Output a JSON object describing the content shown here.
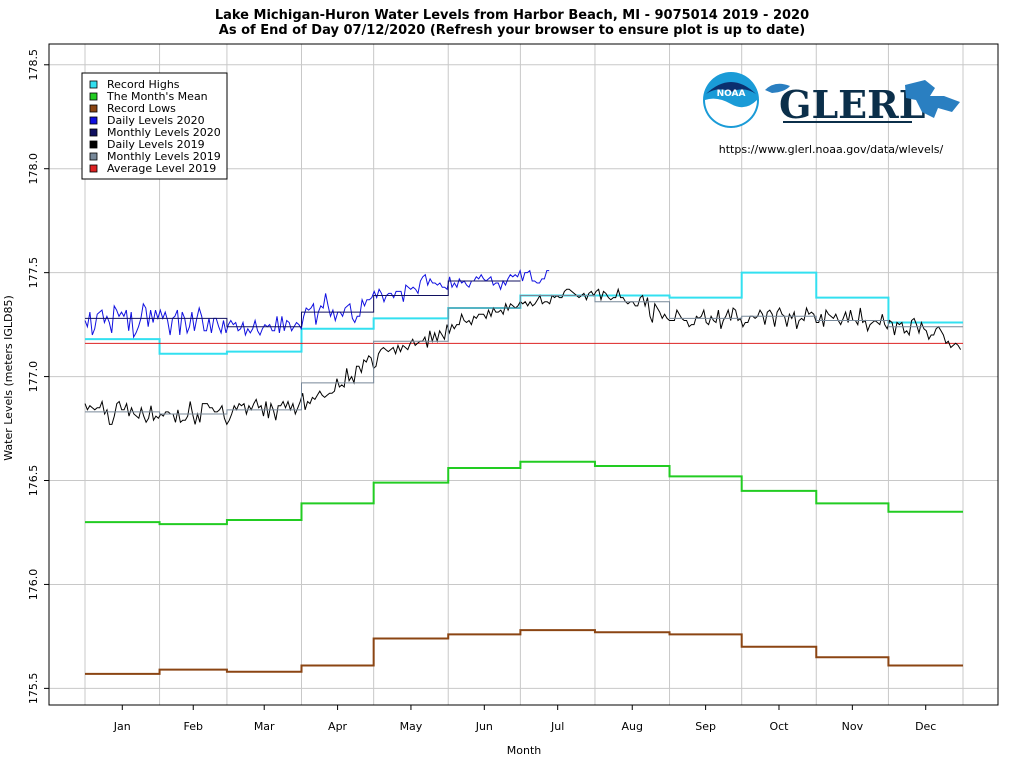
{
  "chart_data": {
    "type": "line",
    "title": "Lake Michigan-Huron Water Levels from Harbor Beach, MI - 9075014 2019 - 2020",
    "subtitle": "As of End of Day 07/12/2020 (Refresh your browser to ensure plot is up to date)",
    "xlabel": "Month",
    "ylabel": "Water Levels (meters IGLD85)",
    "ylim": [
      175.42,
      178.6
    ],
    "yticks": [
      175.5,
      176.0,
      176.5,
      177.0,
      177.5,
      178.0,
      178.5
    ],
    "ytick_labels": [
      "175.5",
      "176.0",
      "176.5",
      "177.0",
      "177.5",
      "178.0",
      "178.5"
    ],
    "categories": [
      "Jan",
      "Feb",
      "Mar",
      "Apr",
      "May",
      "Jun",
      "Jul",
      "Aug",
      "Sep",
      "Oct",
      "Nov",
      "Dec"
    ],
    "grid": true,
    "legend_position": "top-left",
    "url_text": "https://www.glerl.noaa.gov/data/wlevels/",
    "logo_noaa_text": "NOAA",
    "logo_glerl_text": "GLERL",
    "legend": [
      {
        "label": "Record Highs",
        "color": "#33e0f0"
      },
      {
        "label": "The Month's Mean",
        "color": "#22cc22"
      },
      {
        "label": "Record Lows",
        "color": "#8b4513"
      },
      {
        "label": "Daily Levels 2020",
        "color": "#1010e0"
      },
      {
        "label": "Monthly Levels 2020",
        "color": "#101060"
      },
      {
        "label": "Daily Levels 2019",
        "color": "#000000"
      },
      {
        "label": "Monthly Levels 2019",
        "color": "#778899"
      },
      {
        "label": "Average Level 2019",
        "color": "#dd2222"
      }
    ],
    "series": [
      {
        "name": "Record Highs",
        "color": "#33e0f0",
        "values": [
          177.18,
          177.11,
          177.12,
          177.23,
          177.28,
          177.33,
          177.39,
          177.39,
          177.38,
          177.5,
          177.38,
          177.26
        ]
      },
      {
        "name": "The Month's Mean",
        "color": "#22cc22",
        "values": [
          176.3,
          176.29,
          176.31,
          176.39,
          176.49,
          176.56,
          176.59,
          176.57,
          176.52,
          176.45,
          176.39,
          176.35
        ]
      },
      {
        "name": "Record Lows",
        "color": "#8b4513",
        "values": [
          175.57,
          175.59,
          175.58,
          175.61,
          175.74,
          175.76,
          175.78,
          175.77,
          175.76,
          175.7,
          175.65,
          175.61
        ]
      },
      {
        "name": "Monthly Levels 2020",
        "color": "#101060",
        "values": [
          177.28,
          177.28,
          177.24,
          177.31,
          177.39,
          177.46,
          null,
          null,
          null,
          null,
          null,
          null
        ]
      },
      {
        "name": "Monthly Levels 2019",
        "color": "#778899",
        "values": [
          176.83,
          176.82,
          176.84,
          176.97,
          177.17,
          177.33,
          177.39,
          177.36,
          177.28,
          177.29,
          177.27,
          177.24
        ]
      },
      {
        "name": "Average Level 2019",
        "color": "#dd2222",
        "values": [
          177.16,
          177.16,
          177.16,
          177.16,
          177.16,
          177.16,
          177.16,
          177.16,
          177.16,
          177.16,
          177.16,
          177.16
        ]
      }
    ],
    "daily_series": [
      {
        "name": "Daily Levels 2020",
        "color": "#1010e0",
        "end_day": 194,
        "values": [
          177.27,
          177.24,
          177.31,
          177.2,
          177.23,
          177.3,
          177.31,
          177.32,
          177.26,
          177.29,
          177.26,
          177.21,
          177.34,
          177.32,
          177.29,
          177.31,
          177.29,
          177.32,
          177.22,
          177.31,
          177.19,
          177.21,
          177.24,
          177.28,
          177.35,
          177.33,
          177.24,
          177.32,
          177.26,
          177.32,
          177.28,
          177.32,
          177.28,
          177.31,
          177.27,
          177.2,
          177.28,
          177.29,
          177.32,
          177.2,
          177.31,
          177.28,
          177.21,
          177.24,
          177.31,
          177.22,
          177.28,
          177.33,
          177.29,
          177.22,
          177.22,
          177.28,
          177.21,
          177.28,
          177.28,
          177.24,
          177.21,
          177.27,
          177.21,
          177.25,
          177.27,
          177.25,
          177.26,
          177.22,
          177.23,
          177.26,
          177.2,
          177.23,
          177.21,
          177.23,
          177.27,
          177.22,
          177.2,
          177.23,
          177.25,
          177.24,
          177.25,
          177.22,
          177.22,
          177.29,
          177.21,
          177.29,
          177.22,
          177.27,
          177.26,
          177.22,
          177.24,
          177.26,
          177.25,
          177.23,
          177.29,
          177.33,
          177.32,
          177.33,
          177.35,
          177.25,
          177.31,
          177.34,
          177.33,
          177.4,
          177.34,
          177.29,
          177.32,
          177.27,
          177.31,
          177.31,
          177.29,
          177.33,
          177.34,
          177.35,
          177.28,
          177.26,
          177.29,
          177.29,
          177.37,
          177.34,
          177.37,
          177.37,
          177.38,
          177.41,
          177.38,
          177.42,
          177.4,
          177.36,
          177.39,
          177.4,
          177.4,
          177.38,
          177.41,
          177.41,
          177.41,
          177.36,
          177.44,
          177.43,
          177.42,
          177.43,
          177.42,
          177.4,
          177.46,
          177.48,
          177.49,
          177.44,
          177.47,
          177.45,
          177.45,
          177.44,
          177.45,
          177.43,
          177.43,
          177.42,
          177.48,
          177.43,
          177.45,
          177.43,
          177.47,
          177.45,
          177.46,
          177.44,
          177.43,
          177.46,
          177.46,
          177.48,
          177.47,
          177.49,
          177.47,
          177.46,
          177.47,
          177.48,
          177.44,
          177.45,
          177.45,
          177.42,
          177.46,
          177.44,
          177.47,
          177.49,
          177.48,
          177.49,
          177.48,
          177.51,
          177.46,
          177.5,
          177.5,
          177.51,
          177.46,
          177.46,
          177.45,
          177.45,
          177.47,
          177.47,
          177.51,
          177.51
        ]
      },
      {
        "name": "Daily Levels 2019",
        "color": "#000000",
        "end_day": 365,
        "values": [
          176.87,
          176.84,
          176.86,
          176.85,
          176.84,
          176.85,
          176.85,
          176.88,
          176.82,
          176.84,
          176.77,
          176.77,
          176.81,
          176.87,
          176.88,
          176.84,
          176.84,
          176.87,
          176.81,
          176.85,
          176.82,
          176.81,
          176.8,
          176.85,
          176.81,
          176.78,
          176.8,
          176.86,
          176.79,
          176.81,
          176.8,
          176.82,
          176.81,
          176.83,
          176.83,
          176.82,
          176.82,
          176.78,
          176.84,
          176.78,
          176.79,
          176.79,
          176.81,
          176.88,
          176.82,
          176.77,
          176.82,
          176.78,
          176.87,
          176.87,
          176.87,
          176.85,
          176.85,
          176.83,
          176.83,
          176.84,
          176.86,
          176.8,
          176.77,
          176.79,
          176.82,
          176.86,
          176.84,
          176.87,
          176.86,
          176.87,
          176.82,
          176.86,
          176.84,
          176.87,
          176.89,
          176.85,
          176.86,
          176.81,
          176.88,
          176.8,
          176.87,
          176.84,
          176.79,
          176.86,
          176.86,
          176.88,
          176.85,
          176.88,
          176.84,
          176.87,
          176.82,
          176.85,
          176.88,
          176.92,
          176.84,
          176.88,
          176.87,
          176.9,
          176.89,
          176.91,
          176.93,
          176.91,
          176.9,
          176.91,
          176.92,
          176.92,
          176.93,
          176.99,
          176.95,
          176.96,
          176.95,
          177.04,
          176.98,
          177.0,
          176.97,
          177.05,
          177.05,
          177.02,
          177.08,
          177.07,
          177.1,
          177.09,
          177.04,
          177.05,
          177.11,
          177.13,
          177.14,
          177.13,
          177.12,
          177.13,
          177.14,
          177.11,
          177.15,
          177.12,
          177.15,
          177.14,
          177.13,
          177.16,
          177.18,
          177.15,
          177.16,
          177.17,
          177.17,
          177.19,
          177.14,
          177.22,
          177.17,
          177.21,
          177.17,
          177.22,
          177.2,
          177.18,
          177.25,
          177.21,
          177.25,
          177.23,
          177.25,
          177.25,
          177.3,
          177.27,
          177.26,
          177.27,
          177.25,
          177.29,
          177.28,
          177.3,
          177.3,
          177.3,
          177.28,
          177.32,
          177.29,
          177.33,
          177.31,
          177.31,
          177.32,
          177.3,
          177.35,
          177.32,
          177.35,
          177.34,
          177.33,
          177.34,
          177.36,
          177.35,
          177.36,
          177.34,
          177.36,
          177.34,
          177.35,
          177.37,
          177.39,
          177.35,
          177.36,
          177.36,
          177.35,
          177.39,
          177.38,
          177.39,
          177.38,
          177.38,
          177.41,
          177.42,
          177.42,
          177.41,
          177.4,
          177.39,
          177.38,
          177.39,
          177.4,
          177.37,
          177.4,
          177.41,
          177.39,
          177.41,
          177.42,
          177.37,
          177.41,
          177.4,
          177.38,
          177.37,
          177.38,
          177.38,
          177.42,
          177.38,
          177.38,
          177.36,
          177.35,
          177.36,
          177.36,
          177.34,
          177.34,
          177.38,
          177.39,
          177.34,
          177.38,
          177.29,
          177.26,
          177.35,
          177.33,
          177.31,
          177.28,
          177.3,
          177.28,
          177.27,
          177.27,
          177.27,
          177.32,
          177.3,
          177.28,
          177.27,
          177.27,
          177.24,
          177.25,
          177.25,
          177.29,
          177.28,
          177.29,
          177.32,
          177.26,
          177.25,
          177.29,
          177.27,
          177.26,
          177.32,
          177.23,
          177.27,
          177.29,
          177.32,
          177.27,
          177.33,
          177.32,
          177.27,
          177.28,
          177.24,
          177.26,
          177.26,
          177.29,
          177.29,
          177.28,
          177.29,
          177.32,
          177.3,
          177.25,
          177.31,
          177.32,
          177.3,
          177.24,
          177.31,
          177.33,
          177.3,
          177.29,
          177.24,
          177.3,
          177.28,
          177.31,
          177.23,
          177.27,
          177.28,
          177.27,
          177.33,
          177.3,
          177.31,
          177.3,
          177.26,
          177.26,
          177.3,
          177.24,
          177.32,
          177.3,
          177.29,
          177.28,
          177.3,
          177.27,
          177.25,
          177.28,
          177.31,
          177.26,
          177.32,
          177.27,
          177.27,
          177.25,
          177.33,
          177.26,
          177.27,
          177.22,
          177.25,
          177.26,
          177.27,
          177.26,
          177.25,
          177.3,
          177.25,
          177.23,
          177.27,
          177.26,
          177.2,
          177.26,
          177.25,
          177.26,
          177.21,
          177.22,
          177.2,
          177.27,
          177.28,
          177.25,
          177.21,
          177.26,
          177.23,
          177.22,
          177.18,
          177.2,
          177.2,
          177.23,
          177.24,
          177.22,
          177.2,
          177.16,
          177.17,
          177.14,
          177.15,
          177.16,
          177.15,
          177.13
        ]
      }
    ]
  }
}
